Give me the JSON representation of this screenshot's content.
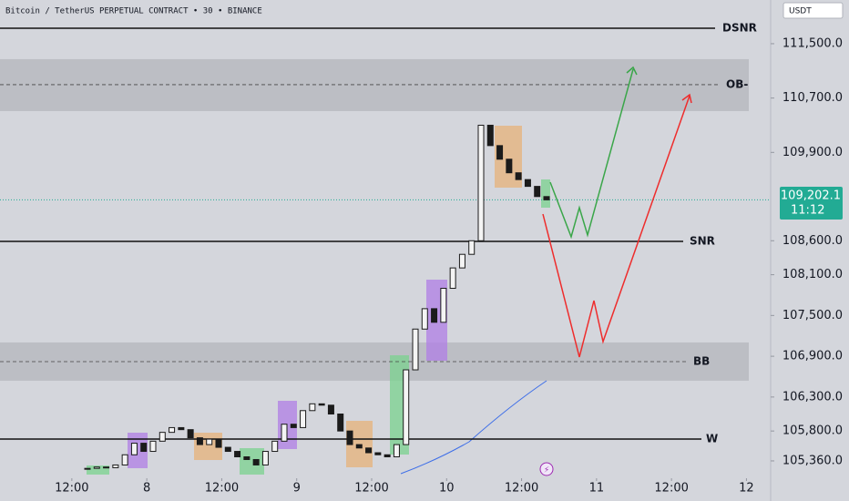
{
  "chart_data": {
    "type": "candlestick",
    "title": "Bitcoin / TetherUS PERPETUAL CONTRACT • 30 • BINANCE",
    "currency": "USDT",
    "xlim": [
      -11.5,
      111
    ],
    "ylim": [
      105172,
      112143
    ],
    "xticks": [
      {
        "value": 0,
        "label": "12:00"
      },
      {
        "value": 12,
        "label": "8"
      },
      {
        "value": 24,
        "label": "12:00"
      },
      {
        "value": 36,
        "label": "9"
      },
      {
        "value": 48,
        "label": "12:00"
      },
      {
        "value": 60,
        "label": "10"
      },
      {
        "value": 72,
        "label": "12:00"
      },
      {
        "value": 84,
        "label": "11"
      },
      {
        "value": 96,
        "label": "12:00"
      },
      {
        "value": 108,
        "label": "12"
      }
    ],
    "yticks": [
      {
        "value": 111500,
        "label": "111,500.0"
      },
      {
        "value": 110700,
        "label": "110,700.0"
      },
      {
        "value": 109900,
        "label": "109,900.0"
      },
      {
        "value": 108600,
        "label": "108,600.0"
      },
      {
        "value": 108100,
        "label": "108,100.0"
      },
      {
        "value": 107500,
        "label": "107,500.0"
      },
      {
        "value": 106900,
        "label": "106,900.0"
      },
      {
        "value": 106300,
        "label": "106,300.0"
      },
      {
        "value": 105800,
        "label": "105,800.0"
      },
      {
        "value": 105360,
        "label": "105,360.0"
      }
    ],
    "x": [
      2.5,
      4,
      5.5,
      7,
      8.5,
      10,
      11.5,
      13,
      14.5,
      16,
      17.5,
      19,
      20.5,
      22,
      23.5,
      25,
      26.5,
      28,
      29.5,
      31,
      32.5,
      34,
      35.5,
      37,
      38.5,
      40,
      41.5,
      43,
      44.5,
      46,
      47.5,
      49,
      50.5,
      52,
      53.5,
      55,
      56.5,
      58,
      59.5,
      61,
      62.5,
      64,
      65.5,
      67,
      68.5,
      70,
      71.5,
      73,
      74.5,
      76
    ],
    "open": [
      105240,
      105250,
      105270,
      105260,
      105300,
      105450,
      105620,
      105500,
      105650,
      105780,
      105850,
      105820,
      105700,
      105600,
      105680,
      105560,
      105500,
      105420,
      105380,
      105300,
      105500,
      105650,
      105900,
      105850,
      106100,
      106200,
      106180,
      106050,
      105800,
      105600,
      105550,
      105480,
      105450,
      105420,
      105600,
      106700,
      107300,
      107600,
      107400,
      107900,
      108200,
      108400,
      108600,
      110300,
      110000,
      109800,
      109600,
      109500,
      109400,
      109250
    ],
    "close": [
      105250,
      105270,
      105260,
      105300,
      105450,
      105620,
      105500,
      105650,
      105780,
      105850,
      105820,
      105700,
      105600,
      105680,
      105560,
      105500,
      105420,
      105380,
      105300,
      105500,
      105650,
      105900,
      105850,
      106100,
      106200,
      106180,
      106050,
      105800,
      105600,
      105550,
      105480,
      105450,
      105420,
      105600,
      106700,
      107300,
      107600,
      107400,
      107900,
      108200,
      108400,
      108600,
      110300,
      110000,
      109800,
      109600,
      109500,
      109400,
      109250,
      109202.1
    ],
    "levels": [
      {
        "label": "DSNR",
        "value": 111728,
        "dashed": false
      },
      {
        "label": "OB-",
        "value": 110897,
        "dashed": true
      },
      {
        "label": "SNR",
        "value": 108590,
        "dashed": false
      },
      {
        "label": "BB",
        "value": 106821,
        "dashed": true
      },
      {
        "label": "W",
        "value": 105682,
        "dashed": false
      }
    ],
    "zones": [
      {
        "from": 110508,
        "to": 111272
      },
      {
        "from": 106540,
        "to": 107103
      }
    ],
    "last_price": {
      "value": 109202.1,
      "label": "109,202.1"
    },
    "countdown": "11:12"
  }
}
